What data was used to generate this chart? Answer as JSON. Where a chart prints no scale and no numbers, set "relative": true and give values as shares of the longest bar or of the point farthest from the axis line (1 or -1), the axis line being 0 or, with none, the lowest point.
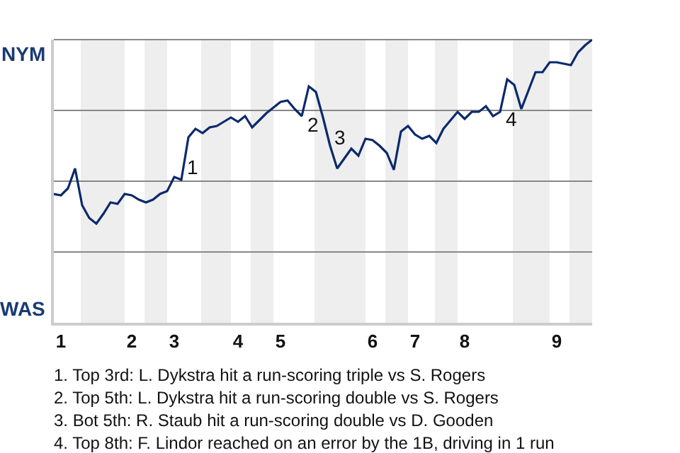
{
  "chart_data": {
    "type": "line",
    "relative": true,
    "categories": [
      null,
      "1",
      null,
      null,
      null,
      null,
      null,
      null,
      null,
      null,
      null,
      "2",
      null,
      null,
      null,
      null,
      null,
      "3",
      null,
      null,
      null,
      null,
      null,
      null,
      null,
      null,
      "4",
      null,
      null,
      null,
      null,
      null,
      "5",
      null,
      null,
      null,
      null,
      null,
      null,
      null,
      null,
      null,
      null,
      null,
      null,
      "6",
      null,
      null,
      null,
      null,
      null,
      "7",
      null,
      null,
      null,
      null,
      null,
      null,
      "8",
      null,
      null,
      null,
      null,
      null,
      null,
      null,
      null,
      null,
      null,
      null,
      null,
      "9",
      null,
      null,
      null,
      null,
      null
    ],
    "series": [
      {
        "color": "#0b2a6b",
        "values": [
          0.455,
          0.45,
          0.475,
          0.545,
          0.415,
          0.37,
          0.35,
          0.385,
          0.425,
          0.42,
          0.455,
          0.45,
          0.435,
          0.425,
          0.435,
          0.455,
          0.465,
          0.515,
          0.505,
          0.655,
          0.685,
          0.67,
          0.69,
          0.695,
          0.71,
          0.725,
          0.71,
          0.73,
          0.69,
          0.715,
          0.74,
          0.76,
          0.78,
          0.785,
          0.755,
          0.73,
          0.835,
          0.815,
          0.725,
          0.625,
          0.545,
          0.58,
          0.615,
          0.59,
          0.65,
          0.645,
          0.625,
          0.6,
          0.54,
          0.675,
          0.695,
          0.665,
          0.65,
          0.66,
          0.635,
          0.685,
          0.715,
          0.745,
          0.72,
          0.745,
          0.745,
          0.765,
          0.73,
          0.745,
          0.86,
          0.84,
          0.755,
          0.82,
          0.885,
          0.885,
          0.92,
          0.92,
          0.915,
          0.91,
          0.955,
          0.98,
          1.0
        ]
      }
    ],
    "grid": "y",
    "marker": "none",
    "line_style": "solid",
    "tick_labels": "x",
    "annotations": [
      "NYM",
      "WAS",
      "1",
      "2",
      "3",
      "4",
      "1. Top 3rd: L. Dykstra hit a run-scoring triple vs S. Rogers",
      "2. Top 5th: L. Dykstra hit a run-scoring double vs S. Rogers",
      "3. Bot 5th: R. Staub hit a run-scoring double vs D. Gooden",
      "4. Top 8th: F. Lindor reached on an error by the 1B, driving in 1 run"
    ]
  }
}
